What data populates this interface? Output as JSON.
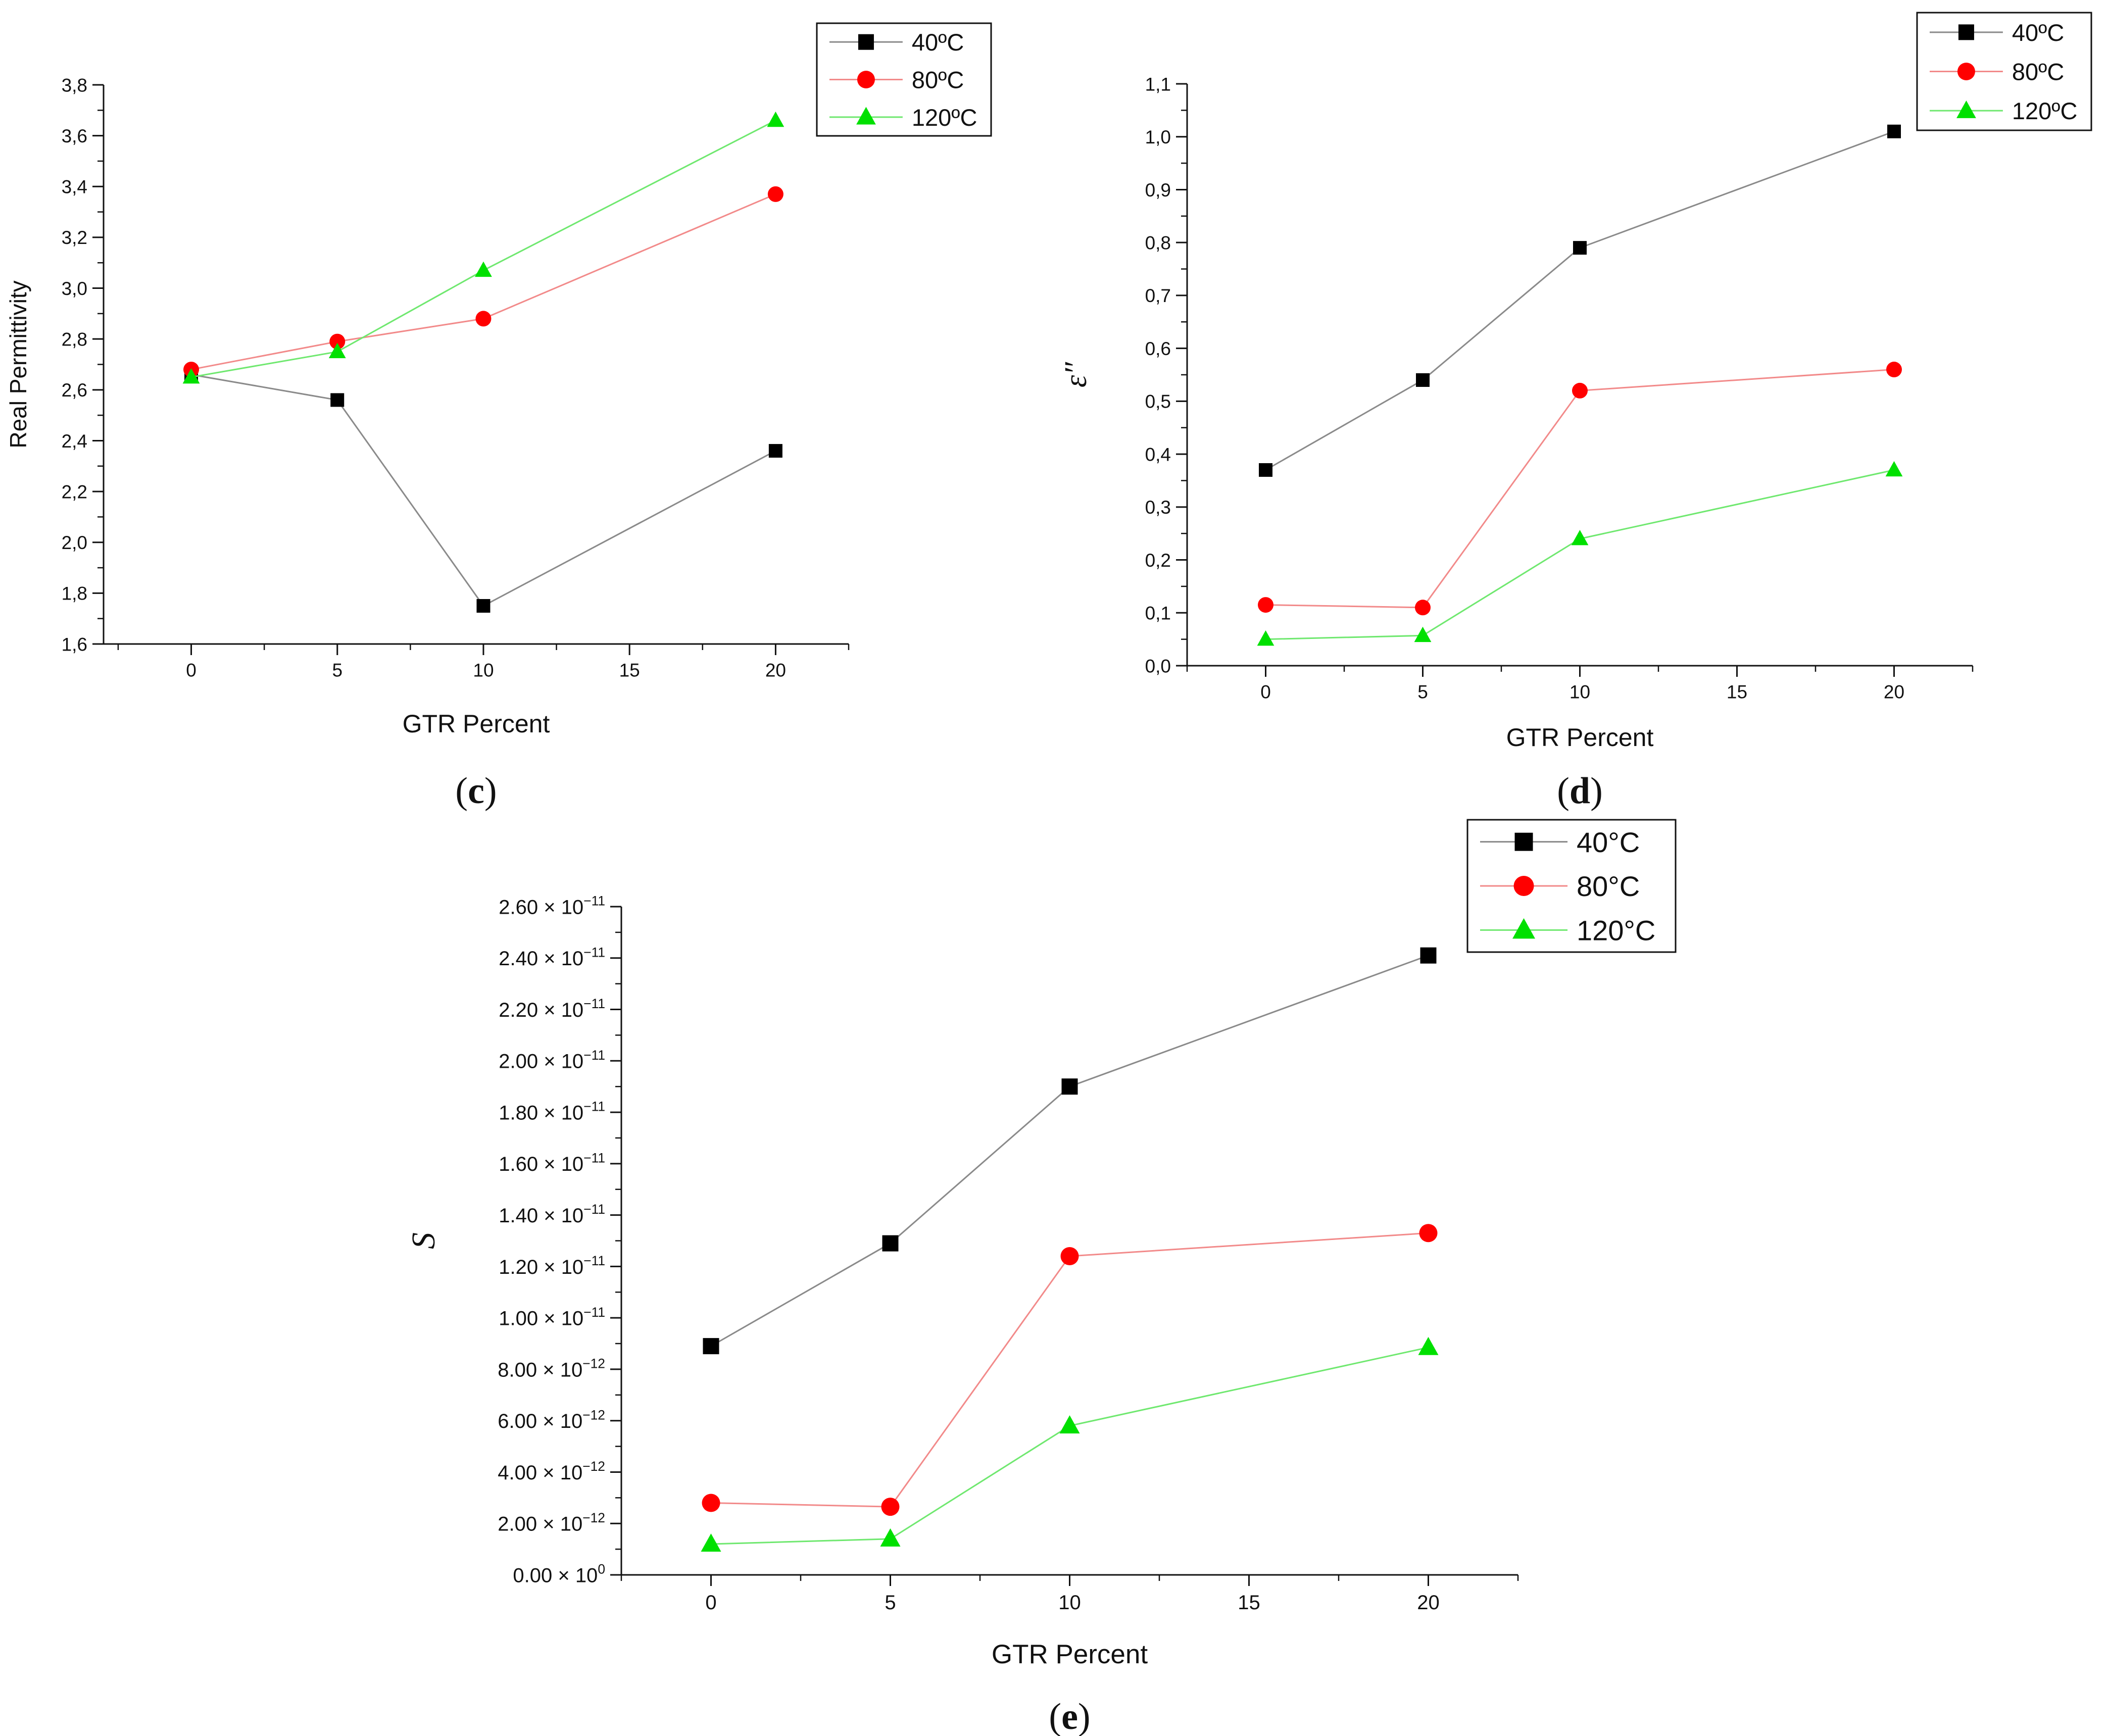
{
  "chart_data": [
    {
      "id": "c",
      "type": "line",
      "panel_label": "(c)",
      "title": "",
      "xlabel": "GTR Percent",
      "ylabel": "Real Permittivity",
      "x_ticks": [
        "0",
        "5",
        "10",
        "15",
        "20"
      ],
      "xlim": [
        -3,
        22.5
      ],
      "ylim": [
        1.6,
        3.8
      ],
      "y_ticks": [
        "1,6",
        "1,8",
        "2,0",
        "2,2",
        "2,4",
        "2,6",
        "2,8",
        "3,0",
        "3,2",
        "3,4",
        "3,6",
        "3,8"
      ],
      "y_tick_values": [
        1.6,
        1.8,
        2.0,
        2.2,
        2.4,
        2.6,
        2.8,
        3.0,
        3.2,
        3.4,
        3.6,
        3.8
      ],
      "x": [
        0,
        5,
        10,
        20
      ],
      "series": [
        {
          "name": "40ºC",
          "marker": "square",
          "color": "#000000",
          "line_color": "#8a8a8a",
          "values": [
            2.66,
            2.56,
            1.75,
            2.36
          ]
        },
        {
          "name": "80ºC",
          "marker": "circle",
          "color": "#ff0000",
          "line_color": "#f28a8a",
          "values": [
            2.68,
            2.79,
            2.88,
            3.37
          ]
        },
        {
          "name": "120ºC",
          "marker": "triangle",
          "color": "#00e000",
          "line_color": "#6fe86f",
          "values": [
            2.65,
            2.75,
            3.07,
            3.66
          ]
        }
      ],
      "legend": "top-right"
    },
    {
      "id": "d",
      "type": "line",
      "panel_label": "(d)",
      "title": "",
      "xlabel": "GTR Percent",
      "ylabel": "ε″",
      "x_ticks": [
        "0",
        "5",
        "10",
        "15",
        "20"
      ],
      "xlim": [
        -2.5,
        22.5
      ],
      "ylim": [
        0.0,
        1.1
      ],
      "y_ticks": [
        "0,0",
        "0,1",
        "0,2",
        "0,3",
        "0,4",
        "0,5",
        "0,6",
        "0,7",
        "0,8",
        "0,9",
        "1,0",
        "1,1"
      ],
      "y_tick_values": [
        0.0,
        0.1,
        0.2,
        0.3,
        0.4,
        0.5,
        0.6,
        0.7,
        0.8,
        0.9,
        1.0,
        1.1
      ],
      "x": [
        0,
        5,
        10,
        20
      ],
      "series": [
        {
          "name": "40ºC",
          "marker": "square",
          "color": "#000000",
          "line_color": "#8a8a8a",
          "values": [
            0.37,
            0.54,
            0.79,
            1.01
          ]
        },
        {
          "name": "80ºC",
          "marker": "circle",
          "color": "#ff0000",
          "line_color": "#f28a8a",
          "values": [
            0.115,
            0.11,
            0.52,
            0.56
          ]
        },
        {
          "name": "120ºC",
          "marker": "triangle",
          "color": "#00e000",
          "line_color": "#6fe86f",
          "values": [
            0.05,
            0.057,
            0.24,
            0.37
          ]
        }
      ],
      "legend": "top-right"
    },
    {
      "id": "e",
      "type": "line",
      "panel_label": "(e)",
      "title": "",
      "xlabel": "GTR Percent",
      "ylabel": "S",
      "x_ticks": [
        "0",
        "5",
        "10",
        "15",
        "20"
      ],
      "xlim": [
        -2.5,
        22.5
      ],
      "ylim": [
        0,
        2.6e-11
      ],
      "y_ticks": [
        {
          "mant": "0.00",
          "exp": "0"
        },
        {
          "mant": "2.00",
          "exp": "−12"
        },
        {
          "mant": "4.00",
          "exp": "−12"
        },
        {
          "mant": "6.00",
          "exp": "−12"
        },
        {
          "mant": "8.00",
          "exp": "−12"
        },
        {
          "mant": "1.00",
          "exp": "−11"
        },
        {
          "mant": "1.20",
          "exp": "−11"
        },
        {
          "mant": "1.40",
          "exp": "−11"
        },
        {
          "mant": "1.60",
          "exp": "−11"
        },
        {
          "mant": "1.80",
          "exp": "−11"
        },
        {
          "mant": "2.00",
          "exp": "−11"
        },
        {
          "mant": "2.20",
          "exp": "−11"
        },
        {
          "mant": "2.40",
          "exp": "−11"
        },
        {
          "mant": "2.60",
          "exp": "−11"
        }
      ],
      "y_tick_values": [
        0,
        2e-12,
        4e-12,
        6e-12,
        8e-12,
        1e-11,
        1.2e-11,
        1.4e-11,
        1.6e-11,
        1.8e-11,
        2e-11,
        2.2e-11,
        2.4e-11,
        2.6e-11
      ],
      "x": [
        0,
        5,
        10,
        20
      ],
      "series": [
        {
          "name": "40°C",
          "marker": "square",
          "color": "#000000",
          "line_color": "#8a8a8a",
          "values": [
            8.9e-12,
            1.29e-11,
            1.9e-11,
            2.41e-11
          ]
        },
        {
          "name": "80°C",
          "marker": "circle",
          "color": "#ff0000",
          "line_color": "#f28a8a",
          "values": [
            2.8e-12,
            2.65e-12,
            1.24e-11,
            1.33e-11
          ]
        },
        {
          "name": "120°C",
          "marker": "triangle",
          "color": "#00e000",
          "line_color": "#6fe86f",
          "values": [
            1.2e-12,
            1.4e-12,
            5.8e-12,
            8.85e-12
          ]
        }
      ],
      "legend": "top-right"
    }
  ]
}
